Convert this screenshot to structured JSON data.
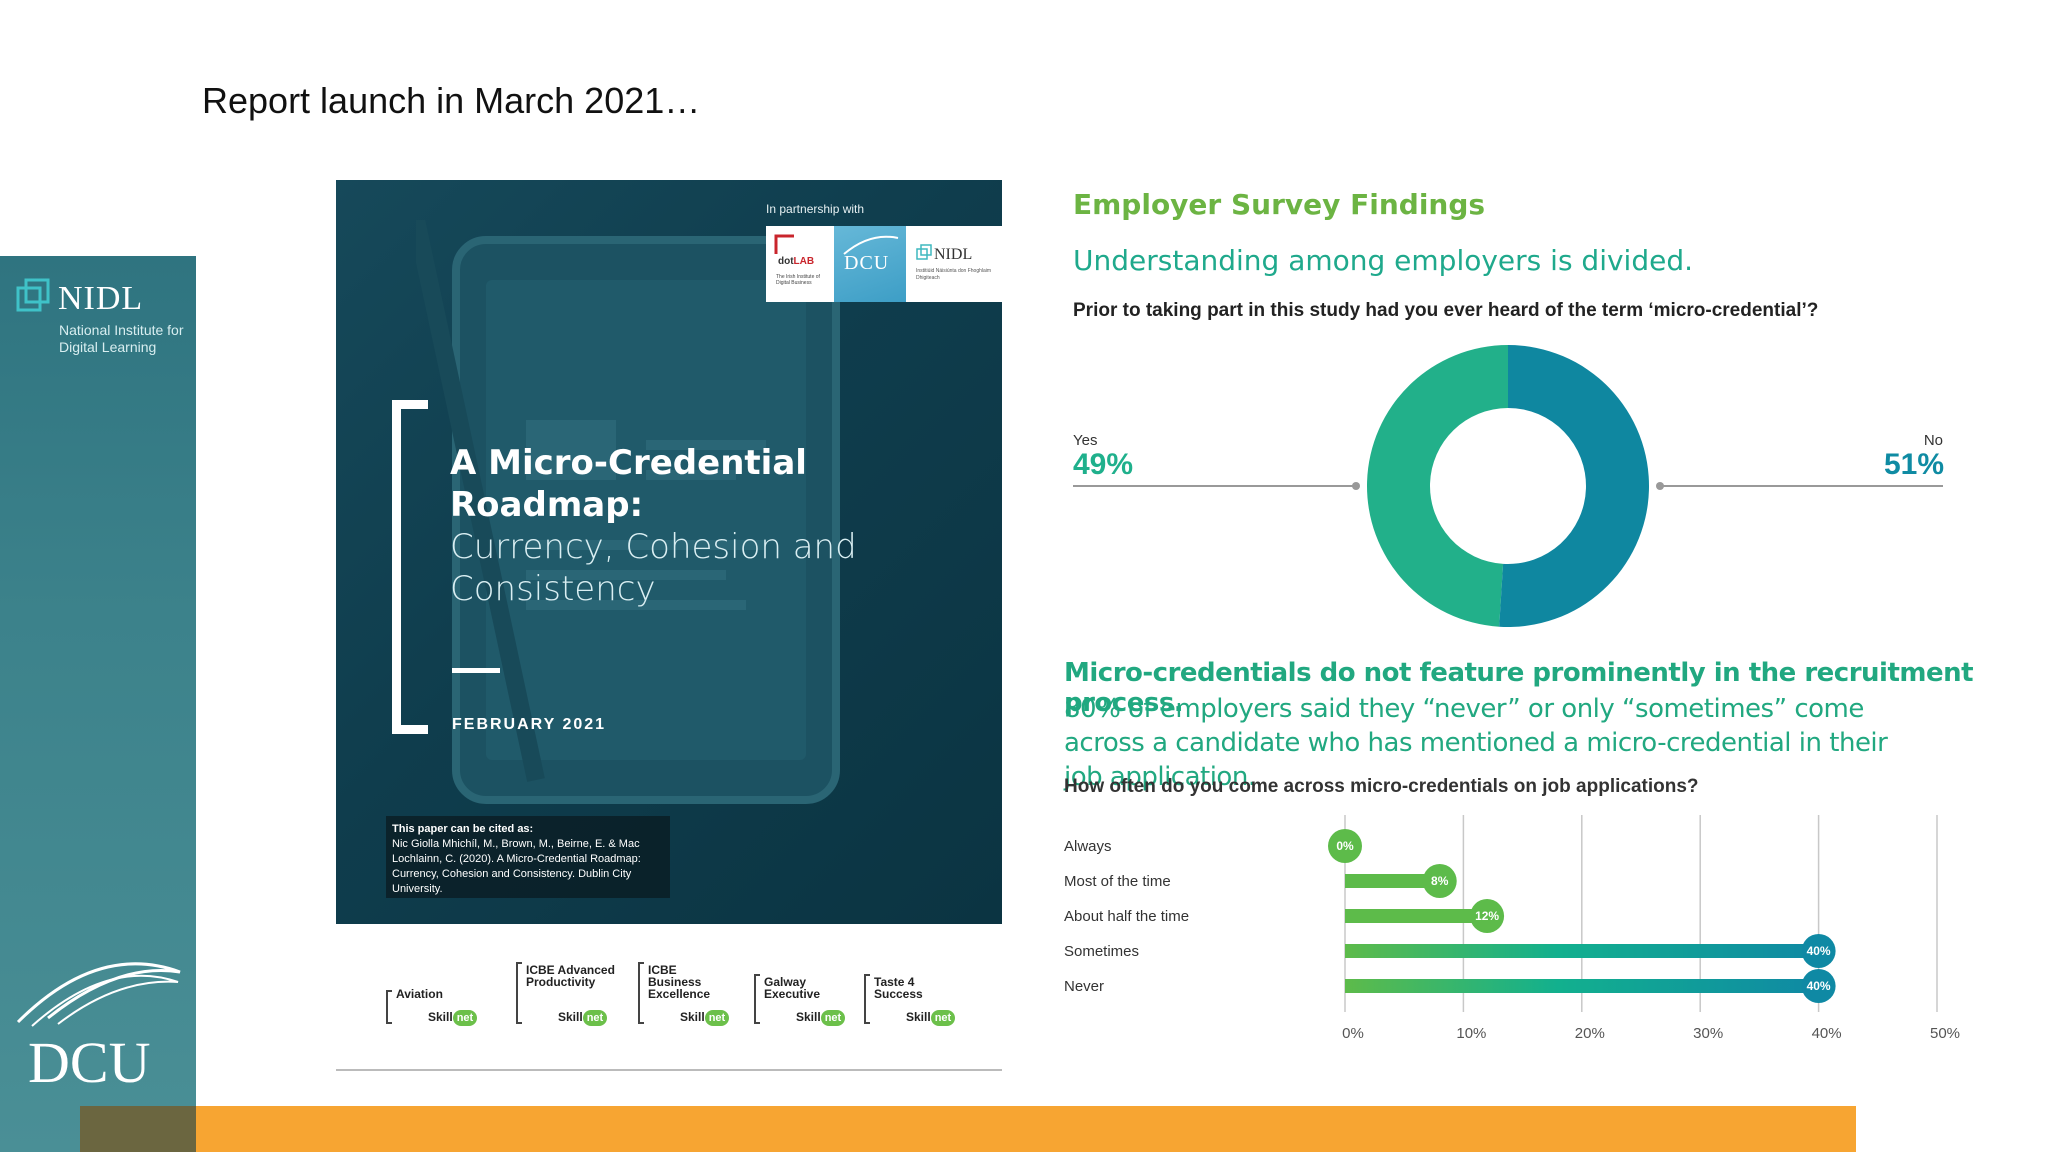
{
  "slide": {
    "title": "Report launch in March 2021…"
  },
  "sidebar": {
    "nidl_word": "NIDL",
    "nidl_sub": "National Institute for Digital Learning",
    "dcu_word": "DCU"
  },
  "cover": {
    "partner_label": "In partnership with",
    "dotlab_label_a": "dot",
    "dotlab_label_b": "LAB",
    "dotlab_small": "The Irish Institute of Digital Business",
    "dcu_label": "DCU",
    "nidl_label": "NIDL",
    "nidl_small": "Institiúid Náisiúnta don Fhoghlaim Dhigiteach",
    "title": "A Micro-Credential Roadmap:",
    "subtitle": "Currency, Cohesion and Consistency",
    "date": "FEBRUARY 2021",
    "cite_heading": "This paper can be cited as:",
    "cite_text": "Nic Giolla Mhichíl, M., Brown, M., Beirne, E. & Mac Lochlainn, C. (2020). A Micro-Credential Roadmap: Currency, Cohesion and Consistency. Dublin City University."
  },
  "skillnets": [
    {
      "name": "Aviation",
      "brand": "Skill",
      "net": "net"
    },
    {
      "name": "ICBE Advanced Productivity",
      "brand": "Skill",
      "net": "net"
    },
    {
      "name": "ICBE Business Excellence",
      "brand": "Skill",
      "net": "net"
    },
    {
      "name": "Galway Executive",
      "brand": "Skill",
      "net": "net"
    },
    {
      "name": "Taste 4 Success",
      "brand": "Skill",
      "net": "net"
    }
  ],
  "survey": {
    "heading": "Employer Survey Findings",
    "subheading": "Understanding among employers is divided.",
    "question1": "Prior to taking part in this study had you ever heard of the term ‘micro-credential’?",
    "yes_label": "Yes",
    "yes_value": "49%",
    "no_label": "No",
    "no_value": "51%",
    "mc_heading": "Micro-credentials do not feature prominently in the recruitment process.",
    "mc_body": "80% of employers said they “never” or only “sometimes” come across a candidate who has mentioned a micro-credential in their job application.",
    "question2": "How often do you come across micro-credentials on job applications?"
  },
  "colors": {
    "green": "#22b08a",
    "teal": "#0f87a0",
    "bar_green": "#5dbb4a",
    "bar_teal": "#0f89a4"
  },
  "chart_data": [
    {
      "type": "pie",
      "categories": [
        "Yes",
        "No"
      ],
      "values": [
        49,
        51
      ],
      "data_labels": [
        "49%",
        "51%"
      ],
      "title": "",
      "hole": true
    },
    {
      "type": "bar",
      "orientation": "horizontal",
      "categories": [
        "Always",
        "Most of the time",
        "About half the time",
        "Sometimes",
        "Never"
      ],
      "values": [
        0,
        8,
        12,
        40,
        40
      ],
      "data_labels": [
        "0%",
        "8%",
        "12%",
        "40%",
        "40%"
      ],
      "xticks": [
        "0%",
        "10%",
        "20%",
        "30%",
        "40%",
        "50%"
      ],
      "xlim": [
        0,
        50
      ],
      "grid": true,
      "title": ""
    }
  ]
}
